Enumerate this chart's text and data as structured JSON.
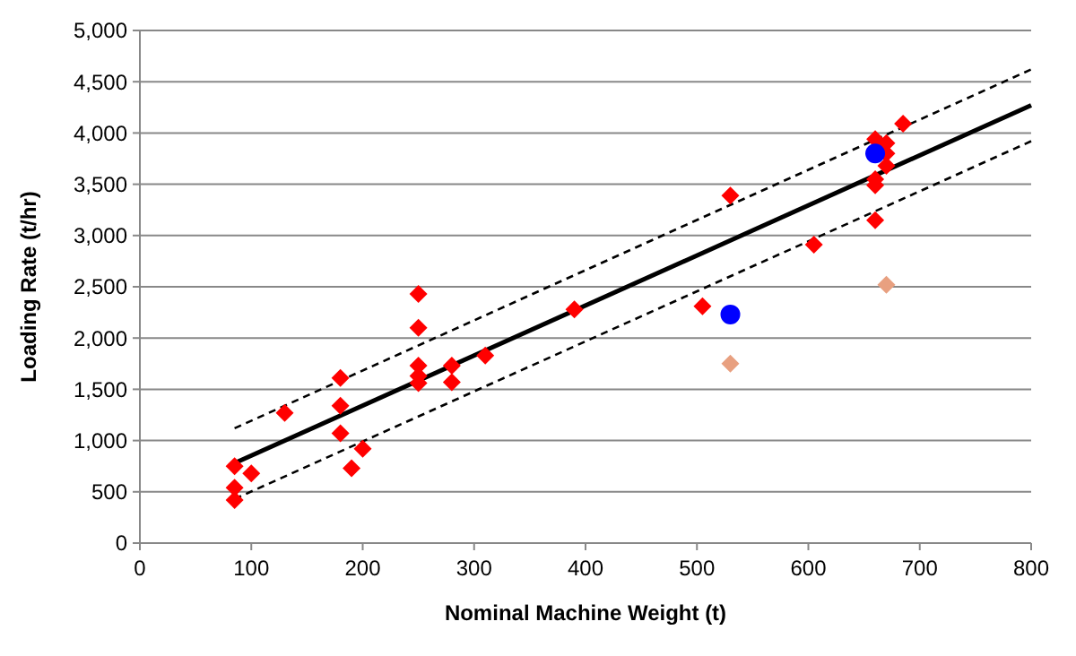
{
  "chart_data": {
    "type": "scatter",
    "xlabel": "Nominal Machine Weight (t)",
    "ylabel": "Loading Rate (t/hr)",
    "xlim": [
      0,
      800
    ],
    "xticks": [
      0,
      100,
      200,
      300,
      400,
      500,
      600,
      700,
      800
    ],
    "ylim": [
      0,
      5000
    ],
    "yticks": [
      {
        "value": 0,
        "label": "0"
      },
      {
        "value": 500,
        "label": "500"
      },
      {
        "value": 1000,
        "label": "1,000"
      },
      {
        "value": 1500,
        "label": "1,500"
      },
      {
        "value": 2000,
        "label": "2,000"
      },
      {
        "value": 2500,
        "label": "2,500"
      },
      {
        "value": 3000,
        "label": "3,000"
      },
      {
        "value": 3500,
        "label": "3,500"
      },
      {
        "value": 4000,
        "label": "4,000"
      },
      {
        "value": 4500,
        "label": "4,500"
      },
      {
        "value": 5000,
        "label": "5,000"
      }
    ],
    "grid": "y",
    "series": [
      {
        "type": "line",
        "color": "#000000",
        "line_style": "solid",
        "marker": "none",
        "x": [
          85,
          800
        ],
        "values": [
          780,
          4270
        ]
      },
      {
        "type": "line",
        "color": "#000000",
        "line_style": "dashed",
        "marker": "none",
        "x": [
          85,
          800
        ],
        "values": [
          1120,
          4620
        ]
      },
      {
        "type": "line",
        "color": "#000000",
        "line_style": "dashed",
        "marker": "none",
        "x": [
          85,
          800
        ],
        "values": [
          430,
          3920
        ]
      },
      {
        "color": "#ff0000",
        "marker": "diamond",
        "x": [
          85,
          85,
          85,
          100,
          130,
          180,
          180,
          180,
          190,
          200,
          250,
          250,
          250,
          250,
          250,
          280,
          280,
          310,
          390,
          505,
          530,
          605,
          660,
          660,
          660,
          660,
          670,
          670,
          670,
          685
        ],
        "values": [
          750,
          540,
          420,
          680,
          1270,
          1610,
          1340,
          1070,
          730,
          920,
          2430,
          2100,
          1730,
          1630,
          1560,
          1730,
          1570,
          1830,
          2280,
          2310,
          3390,
          2910,
          3940,
          3550,
          3490,
          3150,
          3900,
          3800,
          3680,
          4090
        ]
      },
      {
        "color": "#0000ff",
        "marker": "circle",
        "x": [
          660,
          530
        ],
        "values": [
          3800,
          2230
        ]
      },
      {
        "color": "#e8a080",
        "marker": "diamond",
        "x": [
          530,
          670
        ],
        "values": [
          1750,
          2520
        ]
      }
    ]
  }
}
